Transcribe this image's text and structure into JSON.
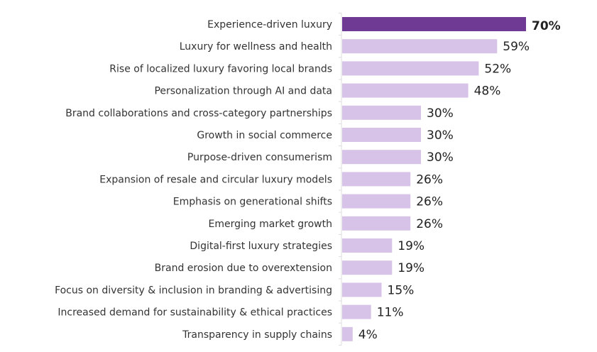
{
  "chart_data": {
    "type": "bar",
    "orientation": "horizontal",
    "title": "",
    "xlabel": "",
    "ylabel": "",
    "xlim": [
      0,
      70
    ],
    "grid": false,
    "value_suffix": "%",
    "categories": [
      "Experience-driven luxury",
      "Luxury for wellness and health",
      "Rise of localized luxury favoring local brands",
      "Personalization through AI and data",
      "Brand collaborations and cross-category partnerships",
      "Growth in social commerce",
      "Purpose-driven consumerism",
      "Expansion of resale and circular luxury models",
      "Emphasis on generational shifts",
      "Emerging market growth",
      "Digital-first luxury strategies",
      "Brand erosion due to overextension",
      "Focus on diversity & inclusion in branding & advertising",
      "Increased demand for sustainability & ethical practices",
      "Transparency in supply chains"
    ],
    "values": [
      70,
      59,
      52,
      48,
      30,
      30,
      30,
      26,
      26,
      26,
      19,
      19,
      15,
      11,
      4
    ],
    "highlight_index": 0,
    "colors": {
      "highlight_bar": "#6f3a93",
      "highlight_label": "#a23cf5",
      "bar": "#d8c3e8",
      "axis": "#dddddd"
    }
  }
}
